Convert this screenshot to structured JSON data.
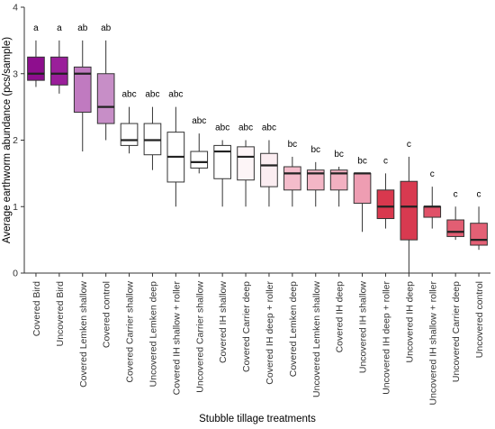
{
  "chart_data": {
    "type": "box",
    "xlabel": "Stubble tillage treatments",
    "ylabel": "Average earthworm abundance (pcs/sample)",
    "ylim": [
      0,
      4
    ],
    "yticks": [
      "0",
      "1",
      "2",
      "3",
      "4"
    ],
    "grid": false,
    "legend": "none",
    "categories": [
      "Covered Bird",
      "Uncovered Bird",
      "Covered Lemken shallow",
      "Covered control",
      "Covered Carrier shallow",
      "Uncovered Lemken deep",
      "Covered IH shallow + roller",
      "Uncovered Carrier shallow",
      "Covered IH shallow",
      "Covered Carrier deep",
      "Covered IH deep + roller",
      "Covered Lemken deep",
      "Uncovered Lemken shallow",
      "Covered IH deep",
      "Uncovered IH shallow",
      "Uncovered IH deep + roller",
      "Uncovered IH deep",
      "Uncovered IH shallow + roller",
      "Uncovered Carrier deep",
      "Uncovered control"
    ],
    "significance": [
      "a",
      "a",
      "ab",
      "ab",
      "abc",
      "abc",
      "abc",
      "abc",
      "abc",
      "abc",
      "abc",
      "bc",
      "bc",
      "bc",
      "bc",
      "c",
      "c",
      "c",
      "c",
      "c"
    ],
    "boxes": [
      {
        "min": 2.8,
        "q1": 2.9,
        "median": 3.0,
        "q3": 3.25,
        "max": 3.5
      },
      {
        "min": 2.7,
        "q1": 2.83,
        "median": 3.0,
        "q3": 3.25,
        "max": 3.5
      },
      {
        "min": 1.83,
        "q1": 2.42,
        "median": 3.0,
        "q3": 3.1,
        "max": 3.5
      },
      {
        "min": 2.0,
        "q1": 2.25,
        "median": 2.5,
        "q3": 3.0,
        "max": 3.5
      },
      {
        "min": 1.8,
        "q1": 1.92,
        "median": 2.0,
        "q3": 2.25,
        "max": 2.5
      },
      {
        "min": 1.55,
        "q1": 1.78,
        "median": 2.0,
        "q3": 2.25,
        "max": 2.5
      },
      {
        "min": 1.0,
        "q1": 1.37,
        "median": 1.75,
        "q3": 2.12,
        "max": 2.5
      },
      {
        "min": 1.5,
        "q1": 1.58,
        "median": 1.67,
        "q3": 1.83,
        "max": 2.1
      },
      {
        "min": 1.0,
        "q1": 1.42,
        "median": 1.83,
        "q3": 1.92,
        "max": 2.0
      },
      {
        "min": 1.0,
        "q1": 1.4,
        "median": 1.75,
        "q3": 1.9,
        "max": 2.0
      },
      {
        "min": 1.0,
        "q1": 1.3,
        "median": 1.62,
        "q3": 1.8,
        "max": 2.0
      },
      {
        "min": 1.0,
        "q1": 1.25,
        "median": 1.5,
        "q3": 1.6,
        "max": 1.75
      },
      {
        "min": 1.0,
        "q1": 1.25,
        "median": 1.5,
        "q3": 1.55,
        "max": 1.67
      },
      {
        "min": 1.0,
        "q1": 1.25,
        "median": 1.5,
        "q3": 1.55,
        "max": 1.6
      },
      {
        "min": 0.62,
        "q1": 1.05,
        "median": 1.5,
        "q3": 1.5,
        "max": 1.5
      },
      {
        "min": 0.67,
        "q1": 0.82,
        "median": 1.0,
        "q3": 1.25,
        "max": 1.5
      },
      {
        "min": 0.0,
        "q1": 0.5,
        "median": 1.0,
        "q3": 1.38,
        "max": 1.75
      },
      {
        "min": 0.67,
        "q1": 0.84,
        "median": 1.0,
        "q3": 1.0,
        "max": 1.3
      },
      {
        "min": 0.5,
        "q1": 0.55,
        "median": 0.62,
        "q3": 0.8,
        "max": 1.0
      },
      {
        "min": 0.35,
        "q1": 0.42,
        "median": 0.5,
        "q3": 0.75,
        "max": 1.0
      }
    ],
    "colors": [
      "#8e0e8e",
      "#9a1f9a",
      "#c07ac0",
      "#c78ec7",
      "#ffffff",
      "#ffffff",
      "#ffffff",
      "#ffffff",
      "#ffffff",
      "#fdf5f7",
      "#fbedf1",
      "#f4bccb",
      "#f3b6c6",
      "#f2b0c1",
      "#ee9db2",
      "#d9384e",
      "#d83a50",
      "#e05168",
      "#e25e73",
      "#e36075"
    ]
  }
}
